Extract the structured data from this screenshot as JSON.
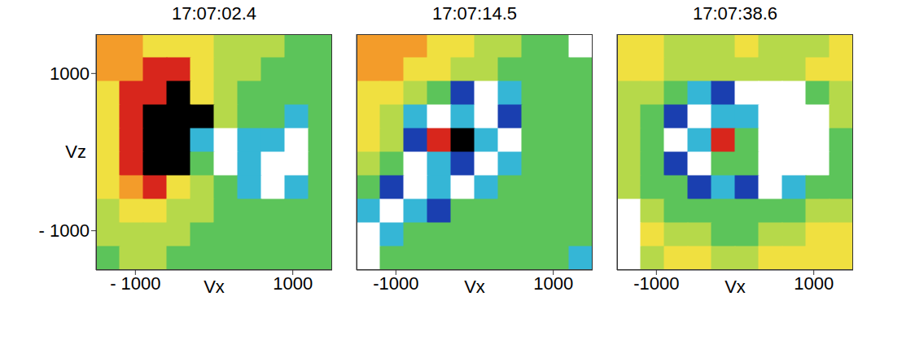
{
  "chart_data": [
    {
      "type": "heatmap",
      "title": "17:07:02.4",
      "x_label": "Vx",
      "y_label": "Vz",
      "xlim": [
        -1500,
        1500
      ],
      "ylim": [
        -1500,
        1500
      ],
      "xticks": [
        {
          "value": -1000,
          "label": "- 1000"
        },
        1000
      ],
      "yticks": [
        1000,
        {
          "value": -1000,
          "label": "- 1000"
        }
      ],
      "zlim": [
        0,
        8
      ],
      "cells": [
        [
          6,
          6,
          5,
          5,
          5,
          4,
          4,
          4,
          3,
          3
        ],
        [
          6,
          6,
          7,
          7,
          5,
          4,
          4,
          3,
          3,
          3
        ],
        [
          5,
          7,
          7,
          8,
          5,
          4,
          3,
          3,
          3,
          3
        ],
        [
          5,
          7,
          8,
          8,
          8,
          4,
          3,
          3,
          2,
          3
        ],
        [
          5,
          7,
          8,
          8,
          2,
          0,
          2,
          2,
          0,
          3
        ],
        [
          5,
          7,
          8,
          8,
          3,
          0,
          2,
          0,
          0,
          3
        ],
        [
          5,
          6,
          7,
          5,
          4,
          3,
          2,
          0,
          2,
          3
        ],
        [
          4,
          5,
          5,
          4,
          4,
          3,
          3,
          3,
          3,
          3
        ],
        [
          4,
          4,
          4,
          4,
          3,
          3,
          3,
          3,
          3,
          3
        ],
        [
          3,
          4,
          4,
          3,
          3,
          3,
          3,
          3,
          3,
          3
        ]
      ]
    },
    {
      "type": "heatmap",
      "title": "17:07:14.5",
      "x_label": "Vx",
      "xlim": [
        -1500,
        1500
      ],
      "ylim": [
        -1500,
        1500
      ],
      "xticks": [
        -1000,
        1000
      ],
      "yticks": [
        -1000,
        1000
      ],
      "tick_labels": "x",
      "zlim": [
        0,
        8
      ],
      "cells": [
        [
          6,
          6,
          6,
          5,
          5,
          4,
          4,
          3,
          3,
          0
        ],
        [
          6,
          6,
          5,
          5,
          4,
          4,
          3,
          3,
          3,
          3
        ],
        [
          5,
          5,
          4,
          3,
          1,
          0,
          2,
          3,
          3,
          3
        ],
        [
          5,
          4,
          2,
          0,
          2,
          0,
          1,
          3,
          3,
          3
        ],
        [
          5,
          4,
          1,
          7,
          8,
          2,
          0,
          3,
          3,
          3
        ],
        [
          4,
          3,
          0,
          2,
          1,
          0,
          2,
          3,
          3,
          3
        ],
        [
          3,
          1,
          0,
          2,
          0,
          2,
          3,
          3,
          3,
          3
        ],
        [
          2,
          0,
          2,
          1,
          3,
          3,
          3,
          3,
          3,
          3
        ],
        [
          0,
          2,
          3,
          3,
          3,
          3,
          3,
          3,
          3,
          3
        ],
        [
          0,
          3,
          3,
          3,
          3,
          3,
          3,
          3,
          3,
          2
        ]
      ]
    },
    {
      "type": "heatmap",
      "title": "17:07:38.6",
      "x_label": "Vx",
      "xlim": [
        -1500,
        1500
      ],
      "ylim": [
        -1500,
        1500
      ],
      "xticks": [
        -1000,
        1000
      ],
      "yticks": [
        -1000,
        1000
      ],
      "tick_labels": "x",
      "zlim": [
        0,
        8
      ],
      "cells": [
        [
          5,
          5,
          4,
          4,
          4,
          5,
          4,
          4,
          4,
          5
        ],
        [
          5,
          5,
          4,
          4,
          4,
          4,
          4,
          4,
          5,
          5
        ],
        [
          4,
          4,
          3,
          2,
          1,
          0,
          0,
          0,
          3,
          4
        ],
        [
          4,
          3,
          1,
          0,
          2,
          2,
          0,
          0,
          0,
          4
        ],
        [
          4,
          3,
          0,
          2,
          7,
          3,
          0,
          0,
          0,
          3
        ],
        [
          4,
          3,
          1,
          0,
          3,
          3,
          0,
          0,
          0,
          3
        ],
        [
          4,
          3,
          3,
          1,
          2,
          1,
          0,
          2,
          3,
          3
        ],
        [
          0,
          4,
          3,
          3,
          3,
          3,
          3,
          3,
          4,
          4
        ],
        [
          0,
          5,
          4,
          4,
          3,
          3,
          4,
          4,
          5,
          5
        ],
        [
          0,
          4,
          5,
          5,
          4,
          4,
          5,
          5,
          5,
          5
        ]
      ]
    }
  ]
}
